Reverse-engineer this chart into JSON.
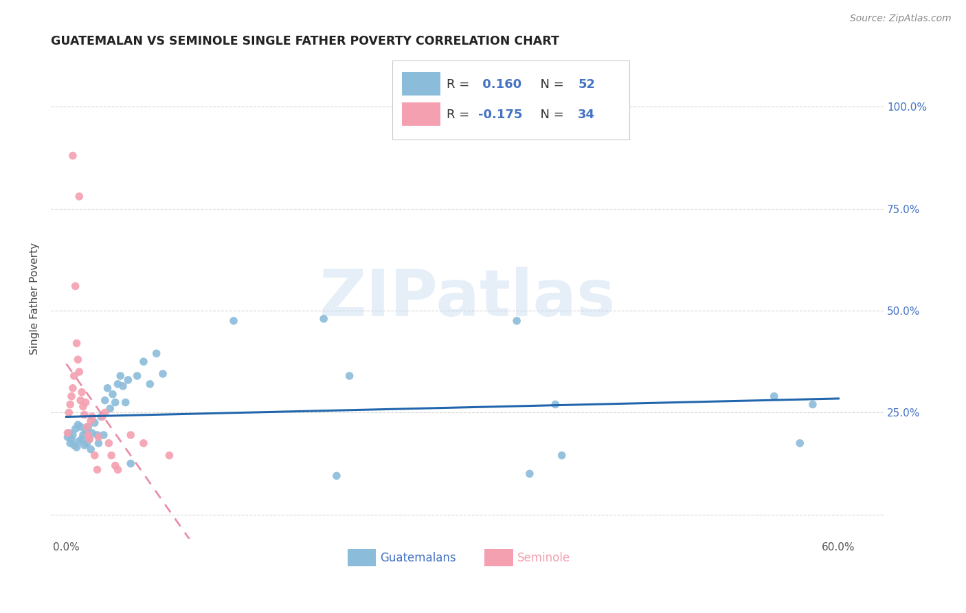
{
  "title": "GUATEMALAN VS SEMINOLE SINGLE FATHER POVERTY CORRELATION CHART",
  "source": "Source: ZipAtlas.com",
  "ylabel_label": "Single Father Poverty",
  "x_tick_positions": [
    0.0,
    0.1,
    0.2,
    0.3,
    0.4,
    0.5,
    0.6
  ],
  "x_tick_labels": [
    "0.0%",
    "",
    "",
    "",
    "",
    "",
    "60.0%"
  ],
  "y_tick_positions": [
    0.0,
    0.25,
    0.5,
    0.75,
    1.0
  ],
  "y_tick_labels_right": [
    "",
    "25.0%",
    "50.0%",
    "75.0%",
    "100.0%"
  ],
  "xlim": [
    -0.012,
    0.635
  ],
  "ylim": [
    -0.06,
    1.12
  ],
  "guatemalan_color": "#8BBCDA",
  "seminole_color": "#F4A0B0",
  "guatemalan_line_color": "#2166AC",
  "seminole_line_color": "#E890A8",
  "R_guatemalan": 0.16,
  "N_guatemalan": 52,
  "R_seminole": -0.175,
  "N_seminole": 34,
  "guatemalan_x": [
    0.001,
    0.002,
    0.003,
    0.004,
    0.005,
    0.006,
    0.007,
    0.008,
    0.009,
    0.01,
    0.011,
    0.012,
    0.013,
    0.014,
    0.015,
    0.016,
    0.017,
    0.018,
    0.019,
    0.02,
    0.022,
    0.024,
    0.025,
    0.027,
    0.029,
    0.03,
    0.032,
    0.034,
    0.036,
    0.038,
    0.04,
    0.042,
    0.044,
    0.046,
    0.048,
    0.05,
    0.055,
    0.06,
    0.065,
    0.07,
    0.075,
    0.13,
    0.2,
    0.21,
    0.22,
    0.35,
    0.36,
    0.38,
    0.385,
    0.55,
    0.57,
    0.58
  ],
  "guatemalan_y": [
    0.19,
    0.2,
    0.175,
    0.185,
    0.195,
    0.17,
    0.21,
    0.165,
    0.22,
    0.18,
    0.215,
    0.185,
    0.195,
    0.17,
    0.205,
    0.175,
    0.215,
    0.185,
    0.16,
    0.2,
    0.225,
    0.195,
    0.175,
    0.24,
    0.195,
    0.28,
    0.31,
    0.26,
    0.295,
    0.275,
    0.32,
    0.34,
    0.315,
    0.275,
    0.33,
    0.125,
    0.34,
    0.375,
    0.32,
    0.395,
    0.345,
    0.475,
    0.48,
    0.095,
    0.34,
    0.475,
    0.1,
    0.27,
    0.145,
    0.29,
    0.175,
    0.27
  ],
  "seminole_x": [
    0.001,
    0.002,
    0.003,
    0.004,
    0.005,
    0.006,
    0.007,
    0.008,
    0.009,
    0.01,
    0.011,
    0.012,
    0.013,
    0.014,
    0.015,
    0.016,
    0.017,
    0.018,
    0.019,
    0.02,
    0.022,
    0.024,
    0.025,
    0.028,
    0.03,
    0.033,
    0.035,
    0.038,
    0.04,
    0.05,
    0.06,
    0.08,
    0.005,
    0.01
  ],
  "seminole_y": [
    0.2,
    0.25,
    0.27,
    0.29,
    0.31,
    0.34,
    0.56,
    0.42,
    0.38,
    0.35,
    0.28,
    0.3,
    0.265,
    0.245,
    0.275,
    0.215,
    0.195,
    0.185,
    0.23,
    0.24,
    0.145,
    0.11,
    0.19,
    0.24,
    0.25,
    0.175,
    0.145,
    0.12,
    0.11,
    0.195,
    0.175,
    0.145,
    0.88,
    0.78
  ],
  "watermark_text": "ZIPatlas",
  "background_color": "#FFFFFF",
  "grid_color": "#CCCCCC",
  "right_tick_color": "#4472C4",
  "legend_R_color": "#4472C4",
  "legend_N_color": "#4472C4"
}
